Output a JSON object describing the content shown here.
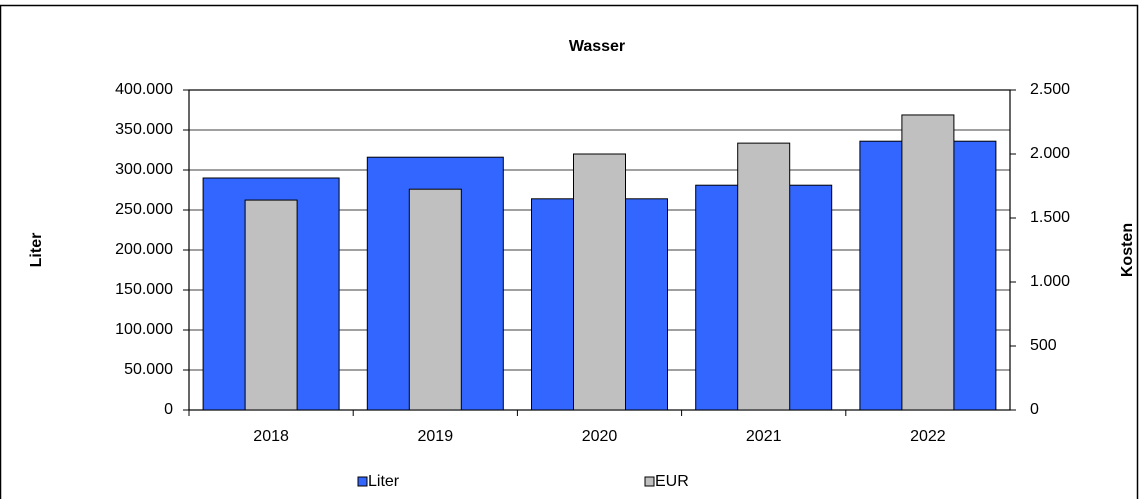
{
  "chart_data": {
    "type": "bar",
    "title": "Wasser",
    "categories": [
      "2018",
      "2019",
      "2020",
      "2021",
      "2022"
    ],
    "series": [
      {
        "name": "Liter",
        "color": "#3366ff",
        "values": [
          290000,
          316000,
          264000,
          281000,
          336000
        ]
      },
      {
        "name": "EUR",
        "color": "#c0c0c0",
        "axis": "y2",
        "values": [
          1640,
          1725,
          2000,
          2085,
          2305
        ]
      }
    ],
    "y_label": "Liter",
    "y2_label": "Kosten",
    "ylim": [
      0,
      400000
    ],
    "yticks": [
      0,
      {
        "value": 50000,
        "label": "50.000"
      },
      {
        "value": 100000,
        "label": "100.000"
      },
      {
        "value": 150000,
        "label": "150.000"
      },
      {
        "value": 200000,
        "label": "200.000"
      },
      {
        "value": 250000,
        "label": "250.000"
      },
      {
        "value": 300000,
        "label": "300.000"
      },
      {
        "value": 350000,
        "label": "350.000"
      },
      {
        "value": 400000,
        "label": "400.000"
      }
    ],
    "y2lim": [
      0,
      2500
    ],
    "y2ticks": [
      0,
      500,
      {
        "value": 1000,
        "label": "1.000"
      },
      {
        "value": 1500,
        "label": "1.500"
      },
      {
        "value": 2000,
        "label": "2.000"
      },
      {
        "value": 2500,
        "label": "2.500"
      }
    ],
    "grid": true,
    "legend": "bottom"
  }
}
